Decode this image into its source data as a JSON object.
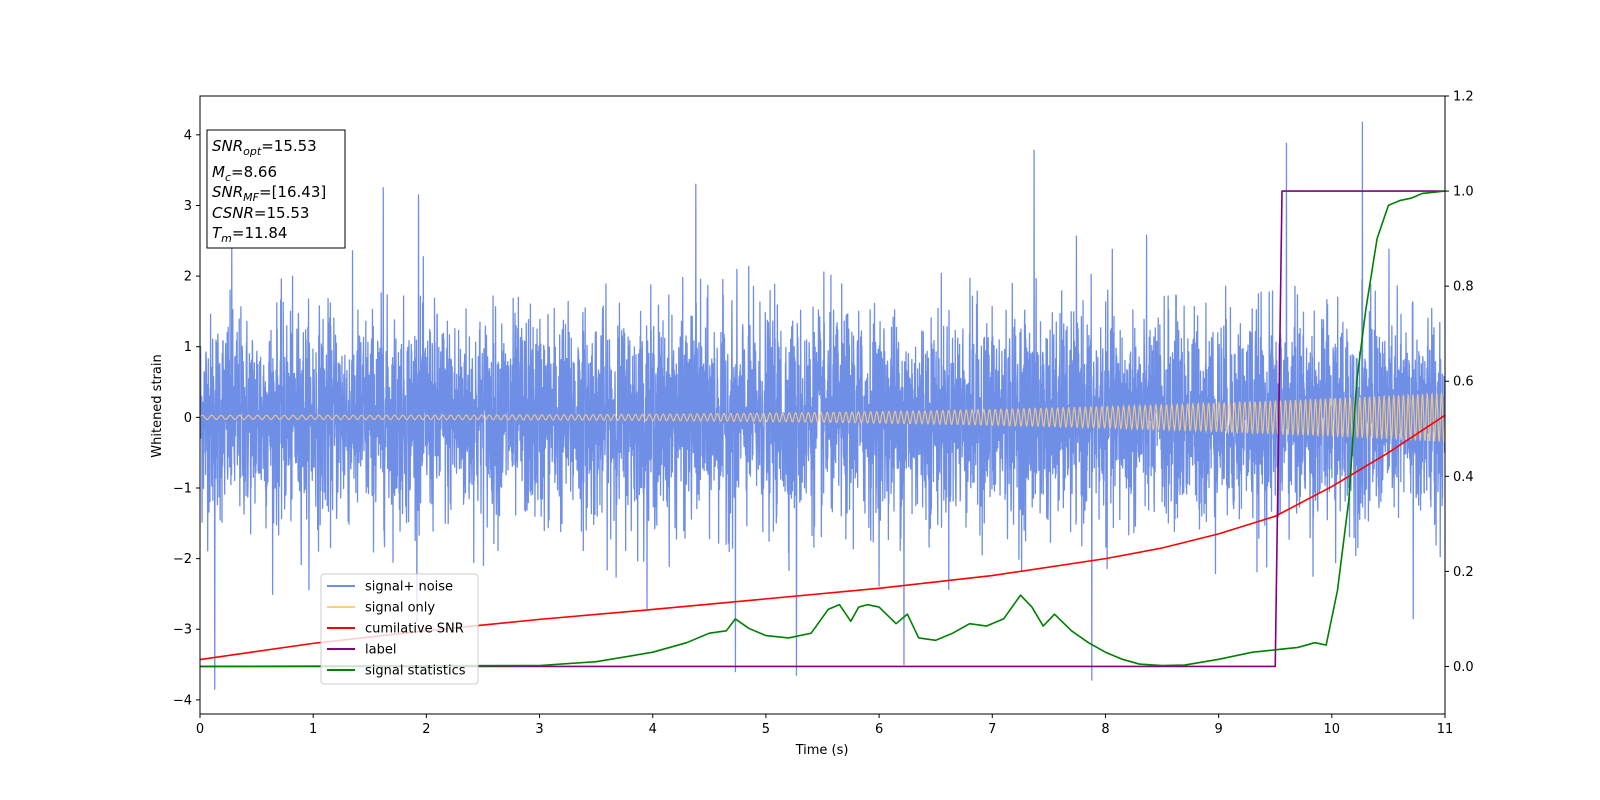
{
  "chart_data": {
    "type": "line",
    "xlabel": "Time (s)",
    "ylabel": "Whitened strain",
    "xlim": [
      0,
      11
    ],
    "ylim": [
      -4.2,
      4.55
    ],
    "y2lim": [
      -0.1,
      1.2
    ],
    "xticks": [
      "0",
      "1",
      "2",
      "3",
      "4",
      "5",
      "6",
      "7",
      "8",
      "9",
      "10",
      "11"
    ],
    "yticks": [
      "−4",
      "−3",
      "−2",
      "−1",
      "0",
      "1",
      "2",
      "3",
      "4"
    ],
    "y2ticks": [
      "0.0",
      "0.2",
      "0.4",
      "0.6",
      "0.8",
      "1.0",
      "1.2"
    ],
    "grid": false,
    "legend_position": "lower-left",
    "annotation": {
      "lines": [
        {
          "sym": "SNR",
          "sub": "opt",
          "italic": true,
          "value": "=15.53"
        },
        {
          "sym": "M",
          "sub": "c",
          "italic": true,
          "value": "=8.66"
        },
        {
          "sym": "SNR",
          "sub": "MF",
          "italic": true,
          "value": "=[16.43]"
        },
        {
          "sym": "CSNR",
          "sub": "",
          "italic": true,
          "value": "=15.53"
        },
        {
          "sym": "T",
          "sub": "m",
          "italic": true,
          "value": "=11.84"
        }
      ]
    },
    "series": [
      {
        "name": "signal+ noise",
        "color": "#6f8ee6",
        "axis": "left",
        "description": "whitened noise around 0, spread about ±1.5 with peaks to ±3.8",
        "peaks": [
          [
            0.13,
            -3.85
          ],
          [
            0.28,
            2.5
          ],
          [
            1.62,
            3.25
          ],
          [
            1.93,
            3.15
          ],
          [
            4.38,
            3.3
          ],
          [
            4.73,
            -3.6
          ],
          [
            5.27,
            -3.65
          ],
          [
            6.22,
            -3.5
          ],
          [
            7.37,
            3.78
          ],
          [
            7.88,
            -3.72
          ],
          [
            9.6,
            3.88
          ],
          [
            10.27,
            4.18
          ],
          [
            10.72,
            -2.85
          ]
        ]
      },
      {
        "name": "signal only",
        "color": "#ffcc80",
        "axis": "left",
        "description": "chirp oscillation, amplitude grows from 0.03 to 0.35",
        "amplitude_start": 0.03,
        "amplitude_end": 0.35
      },
      {
        "name": "cumilative SNR",
        "color": "#ff0000",
        "axis": "left",
        "x": [
          0,
          1,
          2,
          3,
          4,
          5,
          6,
          7,
          8,
          8.5,
          9,
          9.5,
          10,
          10.5,
          11
        ],
        "y": [
          -3.43,
          -3.2,
          -3.02,
          -2.86,
          -2.72,
          -2.57,
          -2.42,
          -2.24,
          -2.0,
          -1.85,
          -1.65,
          -1.4,
          -0.98,
          -0.5,
          0.03
        ]
      },
      {
        "name": "label",
        "color": "#800080",
        "axis": "right",
        "x": [
          0,
          9.5,
          9.56,
          11
        ],
        "y": [
          0,
          0,
          1,
          1
        ]
      },
      {
        "name": "signal statistics",
        "color": "#008000",
        "axis": "right",
        "x": [
          0,
          3.0,
          3.5,
          4.0,
          4.3,
          4.5,
          4.65,
          4.73,
          4.85,
          5.0,
          5.2,
          5.4,
          5.55,
          5.65,
          5.75,
          5.82,
          5.9,
          6.0,
          6.15,
          6.25,
          6.35,
          6.5,
          6.65,
          6.8,
          6.95,
          7.1,
          7.25,
          7.35,
          7.45,
          7.55,
          7.7,
          7.85,
          8.0,
          8.15,
          8.3,
          8.5,
          8.7,
          9.0,
          9.3,
          9.5,
          9.7,
          9.85,
          9.95,
          10.05,
          10.15,
          10.22,
          10.3,
          10.4,
          10.5,
          10.6,
          10.7,
          10.8,
          11.0
        ],
        "y": [
          0,
          0.002,
          0.01,
          0.03,
          0.05,
          0.07,
          0.075,
          0.1,
          0.08,
          0.065,
          0.06,
          0.07,
          0.12,
          0.13,
          0.095,
          0.125,
          0.13,
          0.125,
          0.09,
          0.11,
          0.06,
          0.055,
          0.07,
          0.09,
          0.085,
          0.1,
          0.15,
          0.125,
          0.085,
          0.11,
          0.075,
          0.05,
          0.03,
          0.015,
          0.005,
          0.002,
          0.003,
          0.015,
          0.03,
          0.035,
          0.04,
          0.05,
          0.045,
          0.16,
          0.35,
          0.6,
          0.75,
          0.9,
          0.97,
          0.98,
          0.985,
          0.995,
          1.0
        ]
      }
    ]
  }
}
